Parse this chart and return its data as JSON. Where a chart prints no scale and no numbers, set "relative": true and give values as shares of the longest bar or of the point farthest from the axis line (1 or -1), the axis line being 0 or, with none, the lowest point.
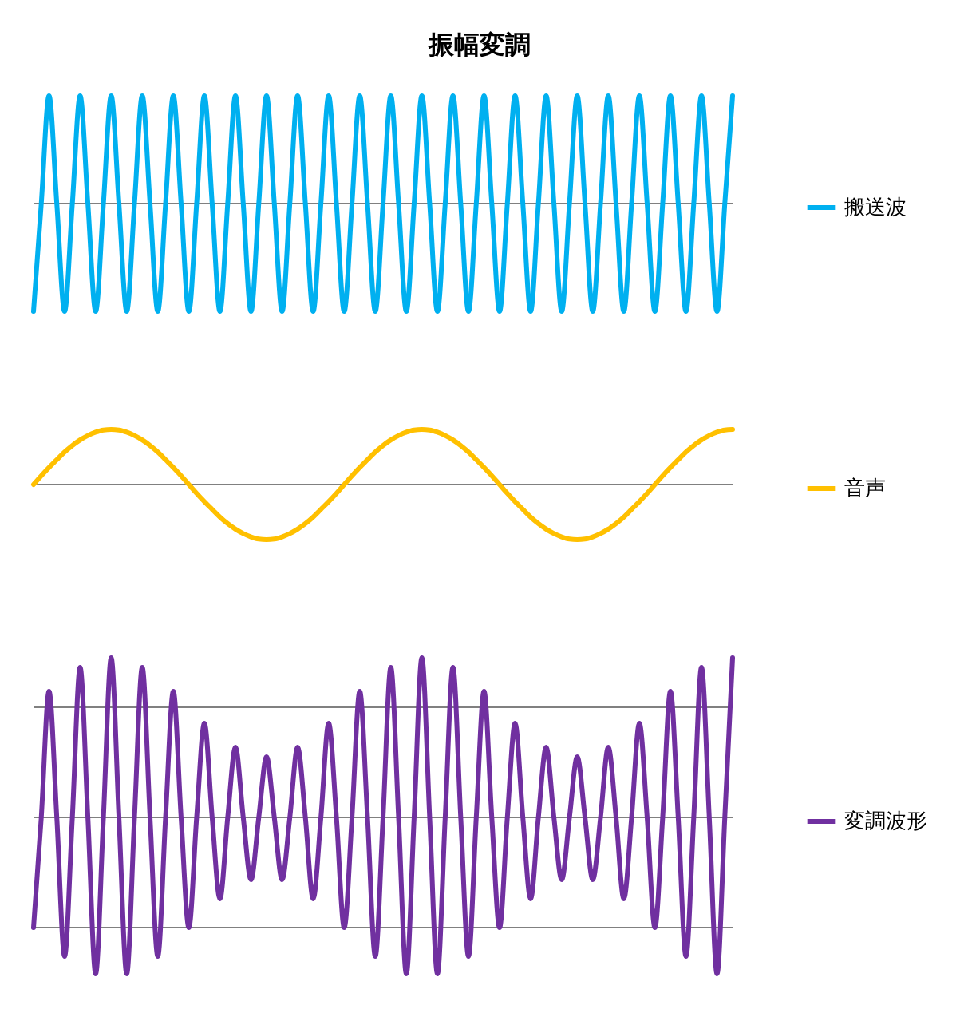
{
  "chart_data": [
    {
      "type": "line",
      "title": "振幅変調",
      "relative": true,
      "legend": "right",
      "categories": [
        null,
        null,
        null,
        null,
        null,
        null,
        null,
        null,
        null,
        null,
        null,
        null,
        null,
        null,
        null,
        null,
        null,
        null,
        null,
        null,
        null,
        null,
        null,
        null,
        null,
        null,
        null,
        null,
        null,
        null,
        null,
        null,
        null,
        null,
        null,
        null,
        null,
        null,
        null,
        null,
        null,
        null,
        null,
        null,
        null,
        null,
        null,
        null,
        null,
        null,
        null,
        null,
        null,
        null,
        null,
        null,
        null,
        null,
        null,
        null,
        null,
        null,
        null,
        null,
        null,
        null,
        null,
        null,
        null,
        null,
        null,
        null,
        null,
        null,
        null,
        null,
        null,
        null,
        null,
        null,
        null,
        null,
        null,
        null,
        null,
        null,
        null,
        null,
        null,
        null,
        null
      ],
      "ref_lines": [
        {
          "axis": "y",
          "value": 0,
          "color": "#808080"
        }
      ],
      "series": [
        {
          "name": "搬送波",
          "color": "#00b0f0",
          "values": [
            -1,
            0,
            1,
            0,
            -1,
            0,
            1,
            0,
            -1,
            0,
            1,
            0,
            -1,
            0,
            1,
            0,
            -1,
            0,
            1,
            0,
            -1,
            0,
            1,
            0,
            -1,
            0,
            1,
            0,
            -1,
            0,
            1,
            0,
            -1,
            0,
            1,
            0,
            -1,
            0,
            1,
            0,
            -1,
            0,
            1,
            0,
            -1,
            0,
            1,
            0,
            -1,
            0,
            1,
            0,
            -1,
            0,
            1,
            0,
            -1,
            0,
            1,
            0,
            -1,
            0,
            1,
            0,
            -1,
            0,
            1,
            0,
            -1,
            0,
            1,
            0,
            -1,
            0,
            1,
            0,
            -1,
            0,
            1,
            0,
            -1,
            0,
            1,
            0,
            -1,
            0,
            1,
            0,
            -1,
            0,
            1
          ]
        }
      ]
    },
    {
      "type": "line",
      "relative": true,
      "legend": "right",
      "categories": [
        null,
        null,
        null,
        null,
        null,
        null,
        null,
        null,
        null,
        null,
        null,
        null,
        null,
        null,
        null,
        null,
        null,
        null,
        null,
        null,
        null,
        null,
        null,
        null,
        null,
        null,
        null,
        null,
        null,
        null,
        null,
        null,
        null,
        null,
        null,
        null,
        null,
        null,
        null,
        null,
        null,
        null,
        null,
        null,
        null,
        null,
        null,
        null,
        null,
        null,
        null,
        null,
        null,
        null,
        null,
        null,
        null,
        null,
        null,
        null,
        null,
        null,
        null,
        null,
        null,
        null,
        null,
        null,
        null,
        null,
        null,
        null,
        null,
        null,
        null,
        null,
        null,
        null,
        null,
        null,
        null,
        null,
        null,
        null,
        null,
        null,
        null,
        null,
        null,
        null,
        null
      ],
      "ref_lines": [
        {
          "axis": "y",
          "value": 0,
          "color": "#808080"
        }
      ],
      "series": [
        {
          "name": "音声",
          "color": "#ffc000",
          "values": [
            0,
            0.16,
            0.31,
            0.45,
            0.59,
            0.71,
            0.81,
            0.89,
            0.95,
            0.99,
            1,
            0.99,
            0.95,
            0.89,
            0.81,
            0.71,
            0.59,
            0.45,
            0.31,
            0.16,
            0,
            -0.16,
            -0.31,
            -0.45,
            -0.59,
            -0.71,
            -0.81,
            -0.89,
            -0.95,
            -0.99,
            -1,
            -0.99,
            -0.95,
            -0.89,
            -0.81,
            -0.71,
            -0.59,
            -0.45,
            -0.31,
            -0.16,
            0,
            0.16,
            0.31,
            0.45,
            0.59,
            0.71,
            0.81,
            0.89,
            0.95,
            0.99,
            1,
            0.99,
            0.95,
            0.89,
            0.81,
            0.71,
            0.59,
            0.45,
            0.31,
            0.16,
            0,
            -0.16,
            -0.31,
            -0.45,
            -0.59,
            -0.71,
            -0.81,
            -0.89,
            -0.95,
            -0.99,
            -1,
            -0.99,
            -0.95,
            -0.89,
            -0.81,
            -0.71,
            -0.59,
            -0.45,
            -0.31,
            -0.16,
            0,
            0.16,
            0.31,
            0.45,
            0.59,
            0.71,
            0.81,
            0.89,
            0.95,
            0.99,
            1
          ]
        }
      ]
    },
    {
      "type": "line",
      "relative": true,
      "legend": "right",
      "categories": [
        null,
        null,
        null,
        null,
        null,
        null,
        null,
        null,
        null,
        null,
        null,
        null,
        null,
        null,
        null,
        null,
        null,
        null,
        null,
        null,
        null,
        null,
        null,
        null,
        null,
        null,
        null,
        null,
        null,
        null,
        null,
        null,
        null,
        null,
        null,
        null,
        null,
        null,
        null,
        null,
        null,
        null,
        null,
        null,
        null,
        null,
        null,
        null,
        null,
        null,
        null,
        null,
        null,
        null,
        null,
        null,
        null,
        null,
        null,
        null,
        null,
        null,
        null,
        null,
        null,
        null,
        null,
        null,
        null,
        null,
        null,
        null,
        null,
        null,
        null,
        null,
        null,
        null,
        null,
        null,
        null,
        null,
        null,
        null,
        null,
        null,
        null,
        null,
        null,
        null,
        null
      ],
      "ref_lines": [
        {
          "axis": "y",
          "value": 0.69,
          "color": "#808080"
        },
        {
          "axis": "y",
          "value": 0,
          "color": "#808080"
        },
        {
          "axis": "y",
          "value": -0.69,
          "color": "#808080"
        }
      ],
      "series": [
        {
          "name": "変調波形",
          "color": "#7030a0",
          "values": [
            -0.69,
            0,
            0.79,
            0,
            -0.87,
            0,
            0.94,
            0,
            -0.98,
            0,
            1,
            0,
            -0.98,
            0,
            0.94,
            0,
            -0.87,
            0,
            0.79,
            0,
            -0.69,
            0,
            0.59,
            0,
            -0.51,
            0,
            0.44,
            0,
            -0.39,
            0,
            0.38,
            0,
            -0.39,
            0,
            0.44,
            0,
            -0.51,
            0,
            0.59,
            0,
            -0.69,
            0,
            0.79,
            0,
            -0.87,
            0,
            0.94,
            0,
            -0.98,
            0,
            1,
            0,
            -0.98,
            0,
            0.94,
            0,
            -0.87,
            0,
            0.79,
            0,
            -0.69,
            0,
            0.59,
            0,
            -0.51,
            0,
            0.44,
            0,
            -0.39,
            0,
            0.38,
            0,
            -0.39,
            0,
            0.44,
            0,
            -0.51,
            0,
            0.59,
            0,
            -0.69,
            0,
            0.79,
            0,
            -0.87,
            0,
            0.94,
            0,
            -0.98,
            0,
            1
          ]
        }
      ]
    }
  ]
}
